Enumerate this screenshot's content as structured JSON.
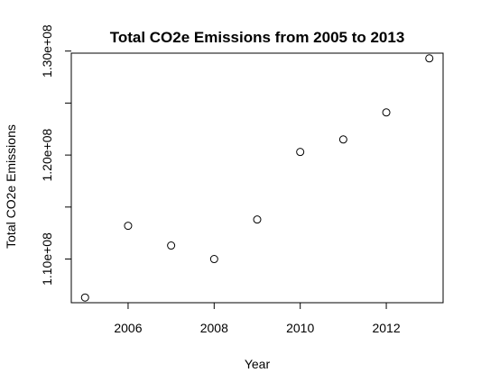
{
  "chart_data": {
    "type": "scatter",
    "title": "Total CO2e Emissions from 2005 to 2013",
    "xlabel": "Year",
    "ylabel": "Total CO2e Emissions",
    "x": [
      2005,
      2006,
      2007,
      2008,
      2009,
      2010,
      2011,
      2012,
      2013
    ],
    "y": [
      106300000,
      113200000,
      111300000,
      110000000,
      113800000,
      120300000,
      121500000,
      124100000,
      129300000
    ],
    "xlim": [
      2004.68,
      2013.32
    ],
    "ylim": [
      105800000,
      129800000
    ],
    "x_ticks": [
      2006,
      2008,
      2010,
      2012
    ],
    "x_tick_labels": [
      "2006",
      "2008",
      "2010",
      "2012"
    ],
    "y_ticks": [
      110000000,
      120000000,
      130000000
    ],
    "y_tick_labels": [
      "1.10e+08",
      "1.20e+08",
      "1.30e+08"
    ],
    "y_minor_ticks": [
      115000000,
      125000000
    ],
    "marker": "open-circle",
    "grid": false,
    "legend": "none"
  }
}
